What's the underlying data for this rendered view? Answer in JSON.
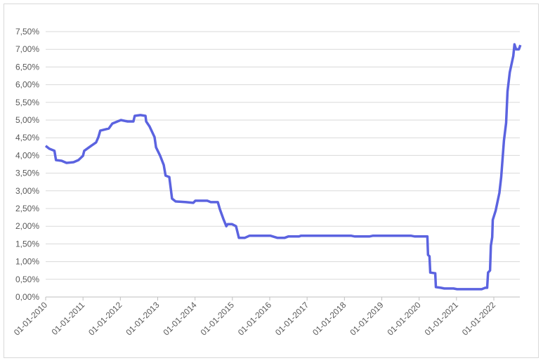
{
  "chart_data": {
    "type": "line",
    "title": "",
    "xlabel": "",
    "ylabel": "",
    "ylim": [
      0,
      7.5
    ],
    "y_tick_step": 0.5,
    "y_tick_labels": [
      "0,00%",
      "0,50%",
      "1,00%",
      "1,50%",
      "2,00%",
      "2,50%",
      "3,00%",
      "3,50%",
      "4,00%",
      "4,50%",
      "5,00%",
      "5,50%",
      "6,00%",
      "6,50%",
      "7,00%",
      "7,50%"
    ],
    "x_tick_labels": [
      "01-01-2010",
      "01-01-2011",
      "01-01-2012",
      "01-01-2013",
      "01-01-2014",
      "01-01-2015",
      "01-01-2016",
      "01-01-2017",
      "01-01-2018",
      "01-01-2019",
      "01-01-2020",
      "01-01-2021",
      "01-01-2022"
    ],
    "grid": "horizontal",
    "legend": "none",
    "line_color": "#5b63e0",
    "series": [
      {
        "points": [
          [
            "2010-01-01",
            4.27
          ],
          [
            "2010-02-05",
            4.19
          ],
          [
            "2010-03-28",
            4.13
          ],
          [
            "2010-04-12",
            3.87
          ],
          [
            "2010-06-06",
            3.85
          ],
          [
            "2010-07-24",
            3.79
          ],
          [
            "2010-10-01",
            3.81
          ],
          [
            "2010-11-18",
            3.87
          ],
          [
            "2011-01-01",
            3.99
          ],
          [
            "2011-01-13",
            4.13
          ],
          [
            "2011-03-21",
            4.27
          ],
          [
            "2011-05-09",
            4.37
          ],
          [
            "2011-06-01",
            4.52
          ],
          [
            "2011-06-19",
            4.7
          ],
          [
            "2011-09-10",
            4.76
          ],
          [
            "2011-10-15",
            4.9
          ],
          [
            "2012-01-07",
            5.0
          ],
          [
            "2012-03-13",
            4.96
          ],
          [
            "2012-05-08",
            4.96
          ],
          [
            "2012-05-21",
            5.12
          ],
          [
            "2012-07-16",
            5.14
          ],
          [
            "2012-09-03",
            5.12
          ],
          [
            "2012-09-10",
            4.96
          ],
          [
            "2012-10-13",
            4.82
          ],
          [
            "2012-12-01",
            4.52
          ],
          [
            "2012-12-15",
            4.23
          ],
          [
            "2013-01-25",
            3.99
          ],
          [
            "2013-03-01",
            3.73
          ],
          [
            "2013-03-19",
            3.43
          ],
          [
            "2013-04-24",
            3.39
          ],
          [
            "2013-05-21",
            2.78
          ],
          [
            "2013-06-25",
            2.7
          ],
          [
            "2013-10-06",
            2.68
          ],
          [
            "2013-12-15",
            2.66
          ],
          [
            "2014-01-04",
            2.72
          ],
          [
            "2014-05-01",
            2.72
          ],
          [
            "2014-06-04",
            2.68
          ],
          [
            "2014-08-12",
            2.68
          ],
          [
            "2014-09-01",
            2.48
          ],
          [
            "2014-10-06",
            2.2
          ],
          [
            "2014-11-03",
            2.0
          ],
          [
            "2014-11-15",
            2.06
          ],
          [
            "2014-12-28",
            2.06
          ],
          [
            "2015-02-06",
            2.0
          ],
          [
            "2015-03-06",
            1.67
          ],
          [
            "2015-05-01",
            1.67
          ],
          [
            "2015-06-16",
            1.73
          ],
          [
            "2016-01-10",
            1.73
          ],
          [
            "2016-03-18",
            1.67
          ],
          [
            "2016-05-25",
            1.67
          ],
          [
            "2016-07-01",
            1.71
          ],
          [
            "2016-10-12",
            1.71
          ],
          [
            "2016-11-01",
            1.73
          ],
          [
            "2018-03-10",
            1.73
          ],
          [
            "2018-04-13",
            1.71
          ],
          [
            "2018-09-01",
            1.71
          ],
          [
            "2018-10-04",
            1.73
          ],
          [
            "2019-10-16",
            1.73
          ],
          [
            "2019-11-21",
            1.71
          ],
          [
            "2020-03-22",
            1.71
          ],
          [
            "2020-03-28",
            1.19
          ],
          [
            "2020-04-12",
            1.15
          ],
          [
            "2020-04-19",
            0.69
          ],
          [
            "2020-06-07",
            0.67
          ],
          [
            "2020-06-13",
            0.28
          ],
          [
            "2020-08-01",
            0.26
          ],
          [
            "2020-09-04",
            0.24
          ],
          [
            "2020-12-03",
            0.24
          ],
          [
            "2021-01-07",
            0.22
          ],
          [
            "2021-09-04",
            0.22
          ],
          [
            "2021-10-09",
            0.26
          ],
          [
            "2021-10-28",
            0.26
          ],
          [
            "2021-11-06",
            0.69
          ],
          [
            "2021-11-25",
            0.75
          ],
          [
            "2021-12-03",
            1.45
          ],
          [
            "2021-12-16",
            1.69
          ],
          [
            "2021-12-22",
            2.18
          ],
          [
            "2022-01-19",
            2.44
          ],
          [
            "2022-02-24",
            2.94
          ],
          [
            "2022-03-14",
            3.39
          ],
          [
            "2022-04-10",
            4.42
          ],
          [
            "2022-05-01",
            4.92
          ],
          [
            "2022-05-15",
            5.81
          ],
          [
            "2022-06-06",
            6.35
          ],
          [
            "2022-07-10",
            6.81
          ],
          [
            "2022-07-22",
            7.14
          ],
          [
            "2022-08-06",
            7.0
          ],
          [
            "2022-09-03",
            7.0
          ],
          [
            "2022-09-18",
            7.12
          ]
        ]
      }
    ]
  }
}
